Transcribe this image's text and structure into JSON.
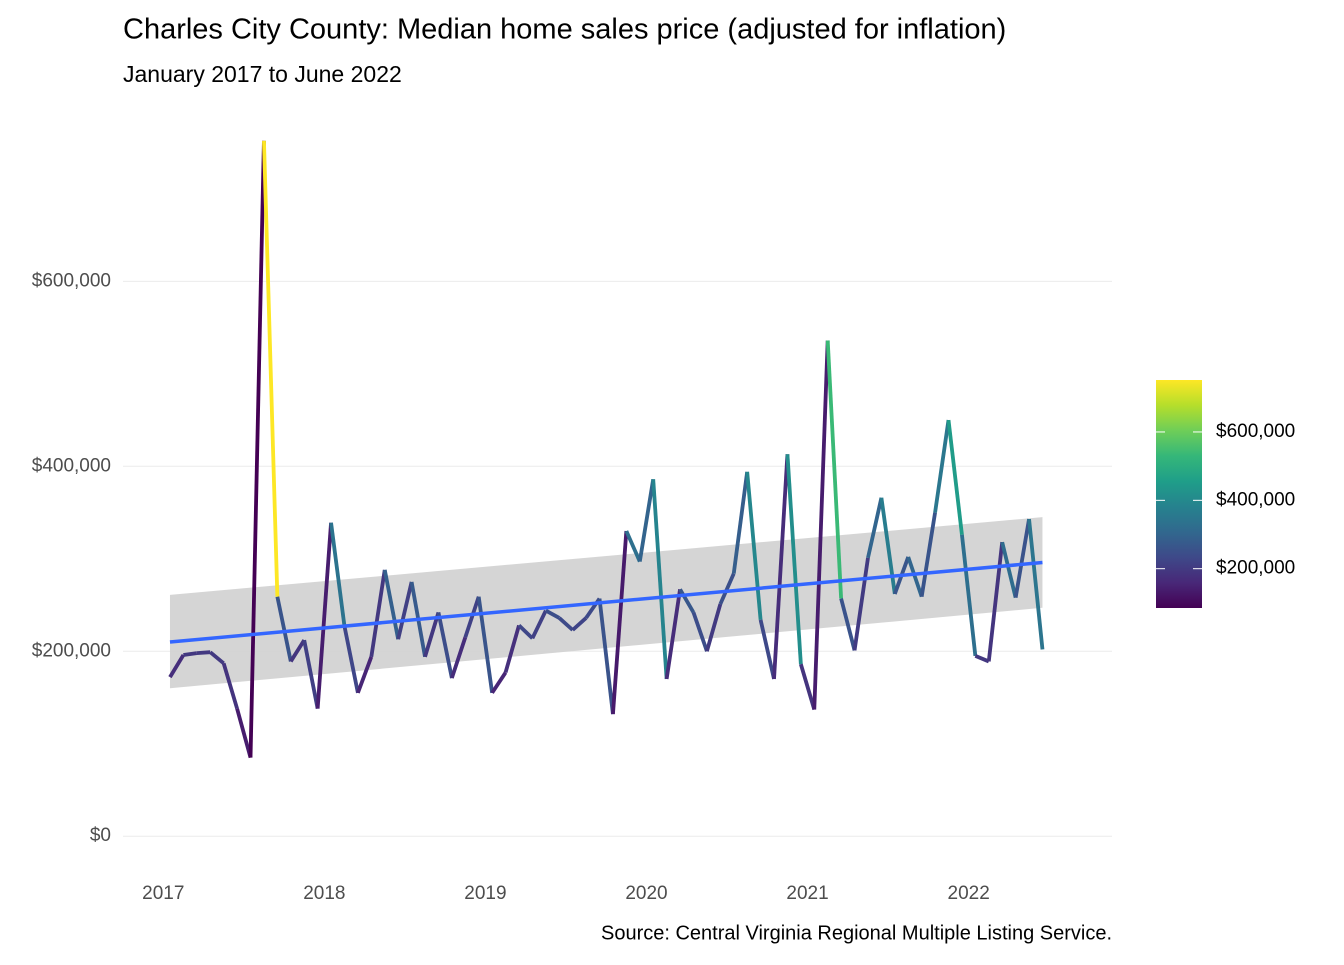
{
  "chart_data": {
    "type": "line",
    "title": "Charles City County: Median home sales price (adjusted for inflation)",
    "subtitle": "January 2017 to June 2022",
    "caption": "Source: Central Virginia Regional Multiple Listing Service.",
    "x": [
      "2017-01",
      "2017-02",
      "2017-03",
      "2017-04",
      "2017-05",
      "2017-06",
      "2017-07",
      "2017-08",
      "2017-09",
      "2017-10",
      "2017-11",
      "2017-12",
      "2018-01",
      "2018-02",
      "2018-03",
      "2018-04",
      "2018-05",
      "2018-06",
      "2018-07",
      "2018-08",
      "2018-09",
      "2018-10",
      "2018-11",
      "2018-12",
      "2019-01",
      "2019-02",
      "2019-03",
      "2019-04",
      "2019-05",
      "2019-06",
      "2019-07",
      "2019-08",
      "2019-09",
      "2019-10",
      "2019-11",
      "2019-12",
      "2020-01",
      "2020-02",
      "2020-03",
      "2020-04",
      "2020-05",
      "2020-06",
      "2020-07",
      "2020-08",
      "2020-09",
      "2020-10",
      "2020-11",
      "2020-12",
      "2021-01",
      "2021-02",
      "2021-03",
      "2021-04",
      "2021-05",
      "2021-06",
      "2021-07",
      "2021-08",
      "2021-09",
      "2021-10",
      "2021-11",
      "2021-12",
      "2022-01",
      "2022-02",
      "2022-03",
      "2022-04",
      "2022-05",
      "2022-06"
    ],
    "values": [
      172000,
      196000,
      198000,
      199000,
      187000,
      138000,
      85000,
      752000,
      259000,
      189000,
      212000,
      138000,
      339000,
      227000,
      155000,
      194000,
      288000,
      213000,
      275000,
      194000,
      242000,
      171000,
      215000,
      259000,
      155000,
      177000,
      228000,
      214000,
      244000,
      236000,
      223000,
      236000,
      257000,
      132000,
      330000,
      297000,
      386000,
      170000,
      267000,
      242000,
      200000,
      251000,
      284000,
      394000,
      234000,
      170000,
      413000,
      186000,
      137000,
      536000,
      257000,
      201000,
      301000,
      366000,
      262000,
      302000,
      259000,
      350000,
      450000,
      326000,
      195000,
      189000,
      318000,
      258000,
      343000,
      202000
    ],
    "xlim": [
      2016.75,
      2022.89
    ],
    "xticks": [
      2017,
      2018,
      2019,
      2020,
      2021,
      2022
    ],
    "ylim": [
      -37600,
      789600
    ],
    "yticks": [
      {
        "value": 0,
        "label": "$0"
      },
      {
        "value": 200000,
        "label": "$200,000"
      },
      {
        "value": 400000,
        "label": "$400,000"
      },
      {
        "value": 600000,
        "label": "$600,000"
      }
    ],
    "grid": true,
    "color_scale": {
      "colors": [
        "#440154",
        "#482878",
        "#3e4989",
        "#31688e",
        "#26828e",
        "#1f9e89",
        "#35b779",
        "#6ece58",
        "#b5de2b",
        "#fde725"
      ],
      "ticks": [
        {
          "value": 200000,
          "label": "$200,000"
        },
        {
          "value": 400000,
          "label": "$400,000"
        },
        {
          "value": 600000,
          "label": "$600,000"
        }
      ]
    },
    "trend": {
      "color": "#3366ff",
      "band_color": "#d3d3d3",
      "values": [
        210000,
        296000
      ],
      "lower": [
        160000,
        247000
      ],
      "upper": [
        261000,
        345000
      ]
    }
  }
}
